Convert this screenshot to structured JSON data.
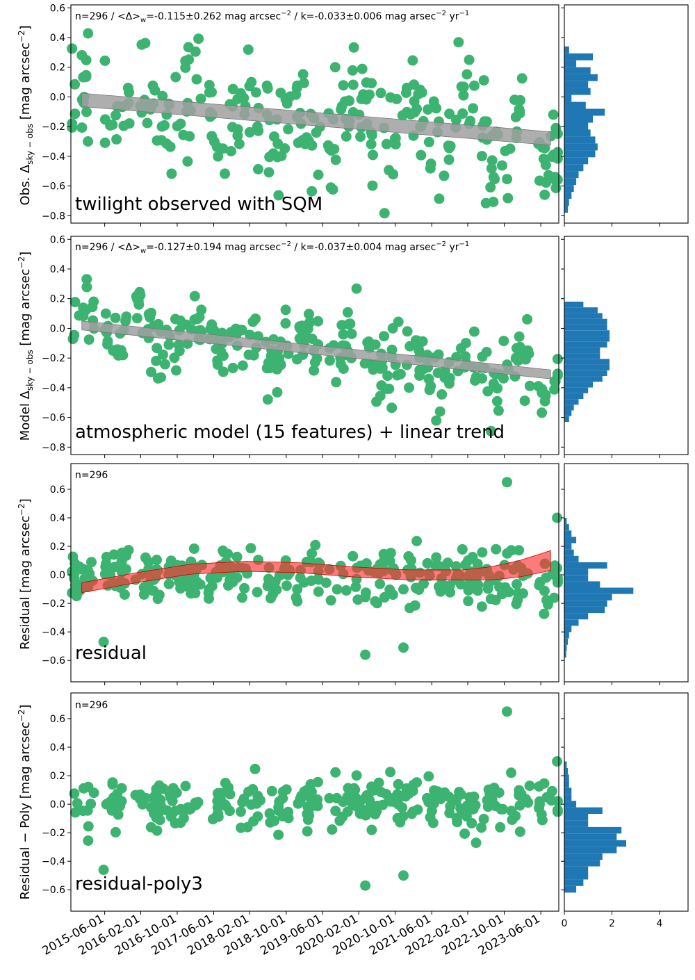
{
  "chart_data": [
    {
      "type": "scatter",
      "id": "obs",
      "ylabel_prefix": "Obs.",
      "ylabel_delta": "Δ",
      "ylabel_sub": "sky − obs",
      "ylabel_unit": "[mag arcsec",
      "ylabel_exp": "−2",
      "ylabel_close": "]",
      "stats": {
        "a": "n=296 / ",
        "b": "<Δ>",
        "c": "w",
        "d": "=-0.115±0.262 mag arcsec",
        "e": "−2",
        "f": " / k=-0.033±0.006 mag arsec",
        "g": "−2",
        "h": " yr",
        "i": "−1"
      },
      "annotation": "twilight observed with SQM",
      "ylim": [
        -0.85,
        0.62
      ],
      "yticks": [
        0.6,
        0.4,
        0.2,
        0.0,
        -0.2,
        -0.4,
        -0.6,
        -0.8
      ],
      "trend": {
        "start": [
          2015.0,
          -0.02
        ],
        "end": [
          2023.6,
          -0.28
        ],
        "halfwidth": 0.045
      },
      "marker_color": "#3cb371",
      "seed": 11,
      "center_shift": 0.0,
      "spread": 0.25,
      "amplitude": 0.18,
      "hist_counts": [
        0.2,
        1.2,
        0.5,
        1.1,
        1.4,
        1.0,
        1.1,
        0.3,
        0.9,
        1.7,
        1.2,
        1.0,
        1.1,
        1.3,
        1.4,
        1.3,
        1.0,
        0.8,
        0.6,
        0.5,
        0.4,
        0.3,
        0.2,
        0.15
      ]
    },
    {
      "type": "scatter",
      "id": "model",
      "ylabel_prefix": "Model",
      "ylabel_delta": "Δ",
      "ylabel_sub": "sky − obs",
      "ylabel_unit": "[mag arcsec",
      "ylabel_exp": "−2",
      "ylabel_close": "]",
      "stats": {
        "a": "n=296 / ",
        "b": "<Δ>",
        "c": "w",
        "d": "=-0.127±0.194 mag arcsec",
        "e": "−2",
        "f": " / k=-0.037±0.004 mag arsec",
        "g": "−2",
        "h": " yr",
        "i": "−1"
      },
      "annotation": "atmospheric model (15 features) + linear trend",
      "ylim": [
        -0.85,
        0.62
      ],
      "yticks": [
        0.6,
        0.4,
        0.2,
        0.0,
        -0.2,
        -0.4,
        -0.6,
        -0.8
      ],
      "trend": {
        "start": [
          2015.0,
          0.02
        ],
        "end": [
          2023.6,
          -0.31
        ],
        "halfwidth": 0.03
      },
      "marker_color": "#3cb371",
      "seed": 23,
      "center_shift": 0.0,
      "spread": 0.15,
      "amplitude": 0.12,
      "hist_counts": [
        0.8,
        1.4,
        1.6,
        1.8,
        1.8,
        1.9,
        1.9,
        1.8,
        1.5,
        1.5,
        1.9,
        1.9,
        1.8,
        1.6,
        1.2,
        1.0,
        0.8,
        0.6,
        0.4,
        0.3,
        0.2
      ]
    },
    {
      "type": "scatter",
      "id": "residual",
      "ylabel_text": "Residual [mag arcsec",
      "ylabel_exp": "−2",
      "ylabel_close": "]",
      "stats_short": "n=296",
      "annotation": "residual",
      "ylim": [
        -0.75,
        0.78
      ],
      "yticks": [
        0.6,
        0.4,
        0.2,
        0.0,
        -0.2,
        -0.4,
        -0.6
      ],
      "poly_band": {
        "x": [
          2015.0,
          2016.0,
          2017.0,
          2018.0,
          2019.0,
          2020.0,
          2021.0,
          2022.0,
          2022.5,
          2023.0,
          2023.6
        ],
        "y": [
          -0.09,
          -0.02,
          0.04,
          0.06,
          0.05,
          0.02,
          0.0,
          0.0,
          0.01,
          0.04,
          0.1
        ],
        "halfwidth": 0.035
      },
      "marker_color": "#3cb371",
      "seed": 37,
      "center_shift": 0.0,
      "spread": 0.13,
      "amplitude": 0.0,
      "outliers": [
        [
          2022.8,
          0.65
        ],
        [
          2023.72,
          0.4
        ],
        [
          2015.4,
          -0.47
        ],
        [
          2020.2,
          -0.56
        ],
        [
          2020.9,
          -0.51
        ]
      ],
      "hist_counts": [
        0.1,
        0.2,
        0.3,
        0.5,
        0.3,
        0.4,
        0.6,
        1.8,
        1.0,
        1.0,
        1.5,
        2.9,
        2.0,
        1.8,
        1.7,
        1.0,
        0.6,
        0.3,
        0.2,
        0.15,
        0.1,
        0.08
      ]
    },
    {
      "type": "scatter",
      "id": "residual-poly",
      "ylabel_text": "Residual − Poly [mag arcsec",
      "ylabel_exp": "−2",
      "ylabel_close": "]",
      "stats_short": "n=296",
      "annotation": "residual-poly3",
      "ylim": [
        -0.75,
        0.78
      ],
      "yticks": [
        0.6,
        0.4,
        0.2,
        0.0,
        -0.2,
        -0.4,
        -0.6
      ],
      "marker_color": "#3cb371",
      "seed": 53,
      "center_shift": 0.0,
      "spread": 0.12,
      "amplitude": 0.0,
      "outliers": [
        [
          2022.8,
          0.65
        ],
        [
          2023.72,
          0.3
        ],
        [
          2015.4,
          -0.46
        ],
        [
          2020.2,
          -0.57
        ],
        [
          2020.9,
          -0.5
        ]
      ],
      "hist_counts": [
        0.1,
        0.15,
        0.2,
        0.2,
        0.3,
        0.3,
        0.5,
        1.6,
        1.0,
        1.0,
        2.4,
        2.2,
        2.6,
        2.2,
        1.6,
        1.5,
        1.0,
        1.0,
        0.8,
        0.5
      ],
      "hist_range": [
        -0.62,
        0.3
      ]
    }
  ],
  "x_axis": {
    "range": [
      2014.8,
      2023.75
    ],
    "tick_values": [
      2015.42,
      2016.08,
      2016.75,
      2017.42,
      2018.08,
      2018.75,
      2019.42,
      2020.08,
      2020.75,
      2021.42,
      2022.08,
      2022.75,
      2023.42
    ],
    "tick_labels": [
      "2015-06-01",
      "2016-02-01",
      "2016-10-01",
      "2017-06-01",
      "2018-02-01",
      "2018-10-01",
      "2019-06-01",
      "2020-02-01",
      "2020-10-01",
      "2021-06-01",
      "2022-02-01",
      "2022-10-01",
      "2023-06-01"
    ]
  },
  "hist_axis": {
    "range": [
      0,
      5.2
    ],
    "tick_values": [
      0,
      2,
      4
    ],
    "tick_labels": [
      "0",
      "2",
      "4"
    ],
    "bar_color": "#1f77b4"
  },
  "colors": {
    "trend_band": "#a0a0a0",
    "poly_band": "#ff3333"
  }
}
